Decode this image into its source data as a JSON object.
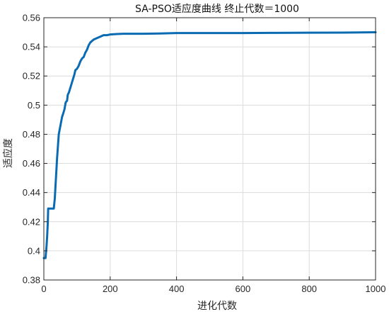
{
  "chart_data": {
    "type": "line",
    "title": "SA-PSO适应度曲线  终止代数＝1000",
    "xlabel": "进化代数",
    "ylabel": "适应度",
    "xlim": [
      0,
      1000
    ],
    "ylim": [
      0.38,
      0.56
    ],
    "xticks": [
      0,
      200,
      400,
      600,
      800,
      1000
    ],
    "yticks": [
      0.38,
      0.4,
      0.42,
      0.44,
      0.46,
      0.48,
      0.5,
      0.52,
      0.54,
      0.56
    ],
    "xtick_labels": [
      "0",
      "200",
      "400",
      "600",
      "800",
      "1000"
    ],
    "ytick_labels": [
      "0.38",
      "0.4",
      "0.42",
      "0.44",
      "0.46",
      "0.48",
      "0.5",
      "0.52",
      "0.54",
      "0.56"
    ],
    "grid": true,
    "series": [
      {
        "color": "#0a6bb3",
        "x": [
          0,
          5,
          8,
          10,
          12,
          13,
          15,
          20,
          25,
          30,
          33,
          36,
          40,
          45,
          50,
          55,
          58,
          62,
          66,
          70,
          72,
          76,
          80,
          84,
          88,
          92,
          95,
          100,
          105,
          110,
          115,
          120,
          125,
          130,
          135,
          140,
          150,
          160,
          170,
          180,
          190,
          200,
          220,
          240,
          260,
          300,
          350,
          400,
          420,
          500,
          600,
          700,
          800,
          900,
          1000
        ],
        "y": [
          0.395,
          0.395,
          0.403,
          0.41,
          0.42,
          0.429,
          0.429,
          0.429,
          0.429,
          0.429,
          0.436,
          0.448,
          0.464,
          0.48,
          0.486,
          0.492,
          0.494,
          0.497,
          0.502,
          0.503,
          0.507,
          0.509,
          0.512,
          0.515,
          0.518,
          0.521,
          0.524,
          0.525,
          0.527,
          0.53,
          0.532,
          0.533,
          0.536,
          0.538,
          0.541,
          0.543,
          0.545,
          0.546,
          0.547,
          0.548,
          0.548,
          0.5485,
          0.5488,
          0.549,
          0.549,
          0.549,
          0.5492,
          0.5495,
          0.5495,
          0.5495,
          0.5495,
          0.5496,
          0.5497,
          0.5498,
          0.55
        ]
      }
    ]
  }
}
